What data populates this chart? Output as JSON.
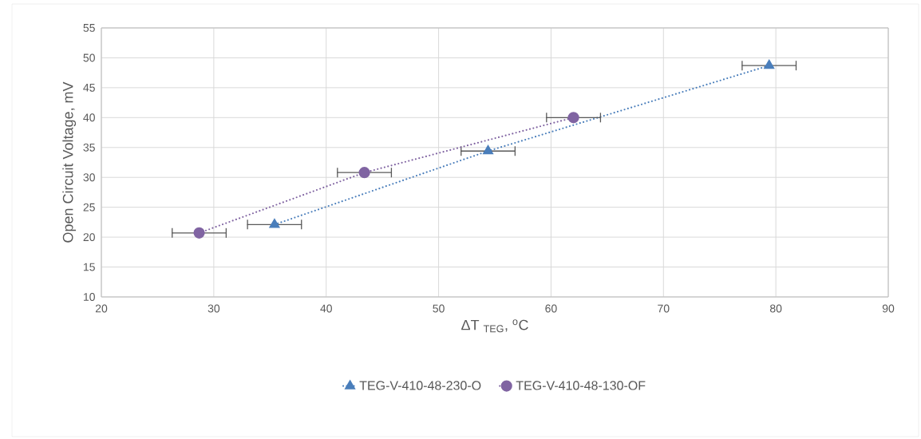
{
  "chart_data": {
    "type": "line",
    "xlabel": "ΔT $_{TEG}$, $^{o}$C",
    "ylabel": "Open Circuit Voltage, mV",
    "xlim": [
      20,
      90
    ],
    "xticks": [
      20,
      30,
      40,
      50,
      60,
      70,
      80,
      90
    ],
    "ylim": [
      10,
      55
    ],
    "yticks": [
      10,
      15,
      20,
      25,
      30,
      35,
      40,
      45,
      50,
      55
    ],
    "grid": true,
    "legend": "bottom",
    "line_style": "dotted",
    "series": [
      {
        "name": "TEG-V-410-48-230-O",
        "color": "#4a7ebb",
        "marker": "triangle",
        "x": [
          35.4,
          54.4,
          79.4
        ],
        "values": [
          22.1,
          34.4,
          48.7
        ],
        "xerrors": [
          2.4,
          2.4,
          2.4
        ]
      },
      {
        "name": "TEG-V-410-48-130-OF",
        "color": "#8064a2",
        "marker": "circle",
        "x": [
          28.7,
          43.4,
          62.0
        ],
        "values": [
          20.7,
          30.8,
          40.0
        ],
        "xerrors": [
          2.4,
          2.4,
          2.4
        ]
      }
    ]
  }
}
